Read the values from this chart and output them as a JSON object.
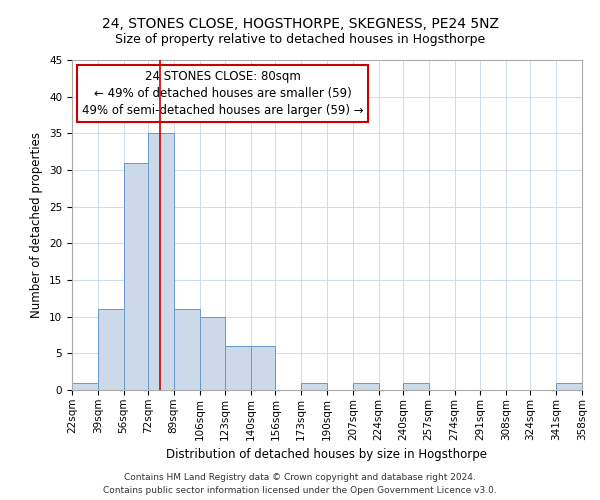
{
  "title": "24, STONES CLOSE, HOGSTHORPE, SKEGNESS, PE24 5NZ",
  "subtitle": "Size of property relative to detached houses in Hogsthorpe",
  "xlabel": "Distribution of detached houses by size in Hogsthorpe",
  "ylabel": "Number of detached properties",
  "bin_edges": [
    22,
    39,
    56,
    72,
    89,
    106,
    123,
    140,
    156,
    173,
    190,
    207,
    224,
    240,
    257,
    274,
    291,
    308,
    324,
    341,
    358
  ],
  "bar_heights": [
    1,
    11,
    31,
    35,
    11,
    10,
    6,
    6,
    0,
    1,
    0,
    1,
    0,
    1,
    0,
    0,
    0,
    0,
    0,
    1
  ],
  "bar_color": "#ccd9e8",
  "bar_edge_color": "#6699cc",
  "red_line_x": 80,
  "annotation_title": "24 STONES CLOSE: 80sqm",
  "annotation_line1": "← 49% of detached houses are smaller (59)",
  "annotation_line2": "49% of semi-detached houses are larger (59) →",
  "annotation_box_color": "#cc0000",
  "ylim": [
    0,
    45
  ],
  "yticks": [
    0,
    5,
    10,
    15,
    20,
    25,
    30,
    35,
    40,
    45
  ],
  "footer_line1": "Contains HM Land Registry data © Crown copyright and database right 2024.",
  "footer_line2": "Contains public sector information licensed under the Open Government Licence v3.0.",
  "title_fontsize": 10,
  "subtitle_fontsize": 9,
  "axis_label_fontsize": 8.5,
  "tick_fontsize": 7.5,
  "annotation_fontsize": 8.5,
  "footer_fontsize": 6.5
}
